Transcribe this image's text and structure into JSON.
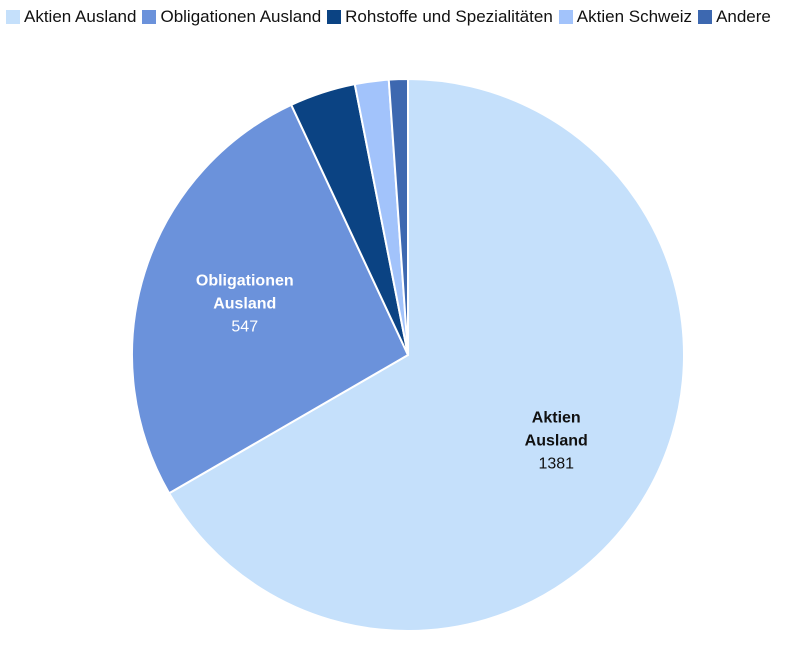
{
  "chart_data": {
    "type": "pie",
    "title": "",
    "legend_position": "top-left",
    "slices": [
      {
        "label": "Aktien Ausland",
        "value": 1381,
        "color": "#c5e0fb",
        "label_lines": [
          "Aktien",
          "Ausland"
        ],
        "label_color": "#111111",
        "show_label": true
      },
      {
        "label": "Obligationen Ausland",
        "value": 547,
        "color": "#6b92db",
        "label_lines": [
          "Obligationen",
          "Ausland"
        ],
        "label_color": "#ffffff",
        "show_label": true
      },
      {
        "label": "Rohstoffe und Spezialitäten",
        "value": 80,
        "color": "#0b4383",
        "label_lines": [],
        "label_color": "#ffffff",
        "show_label": false
      },
      {
        "label": "Aktien Schweiz",
        "value": 41,
        "color": "#a2c3fb",
        "label_lines": [],
        "label_color": "#111111",
        "show_label": false
      },
      {
        "label": "Andere",
        "value": 23,
        "color": "#3d68b0",
        "label_lines": [],
        "label_color": "#ffffff",
        "show_label": false
      }
    ]
  }
}
